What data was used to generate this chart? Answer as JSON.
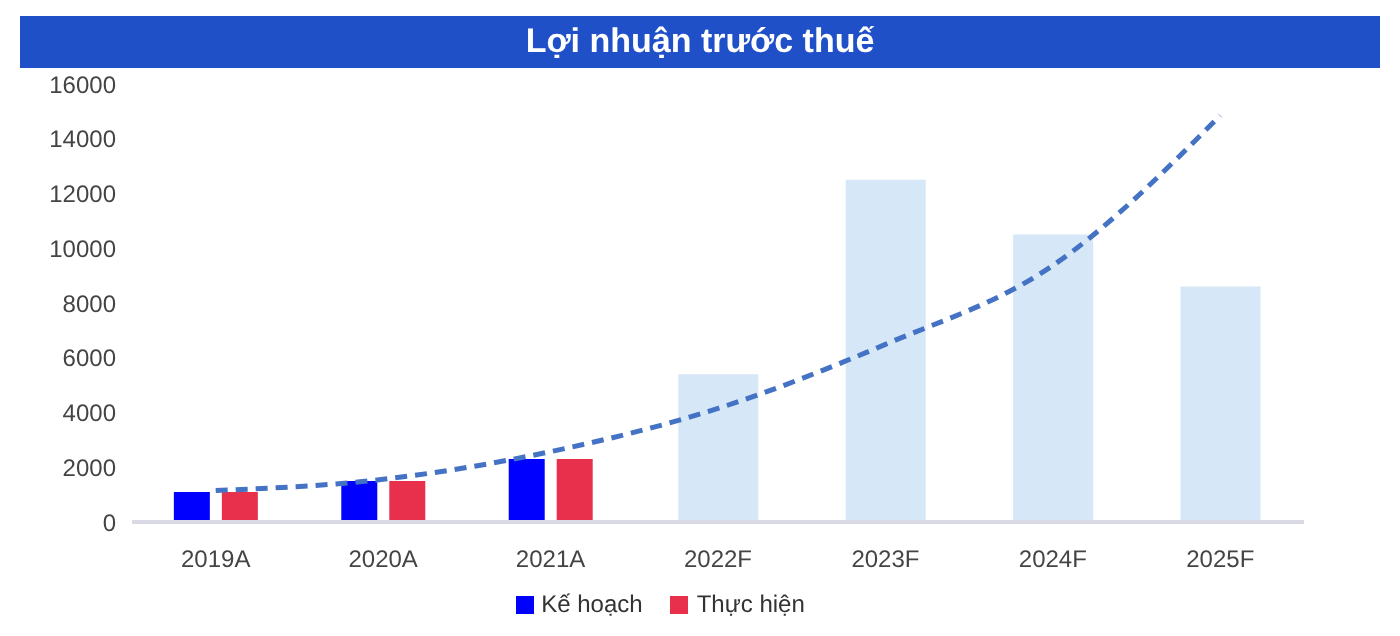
{
  "chart_data": {
    "type": "bar",
    "title": "Lợi nhuận trước thuế",
    "categories": [
      "2019A",
      "2020A",
      "2021A",
      "2022F",
      "2023F",
      "2024F",
      "2025F"
    ],
    "series": [
      {
        "name": "Kế hoạch",
        "color": "#0000ff",
        "values": [
          1100,
          1500,
          2300,
          null,
          null,
          null,
          null
        ]
      },
      {
        "name": "Thực hiện",
        "color": "#e8304d",
        "values": [
          1100,
          1500,
          2300,
          null,
          null,
          null,
          null
        ]
      },
      {
        "color": "#d6e7f7",
        "values": [
          null,
          null,
          null,
          5400,
          12500,
          10500,
          8600
        ]
      },
      {
        "type": "line",
        "color": "#4472c4",
        "line_style": "dashed",
        "marker": "none",
        "values": [
          1150,
          1560,
          2570,
          4150,
          6490,
          9370,
          14850
        ]
      }
    ],
    "ylim": [
      0,
      16000
    ],
    "yticks": [
      0,
      2000,
      4000,
      6000,
      8000,
      10000,
      12000,
      14000,
      16000
    ],
    "grid": false,
    "legend": "bottom"
  }
}
